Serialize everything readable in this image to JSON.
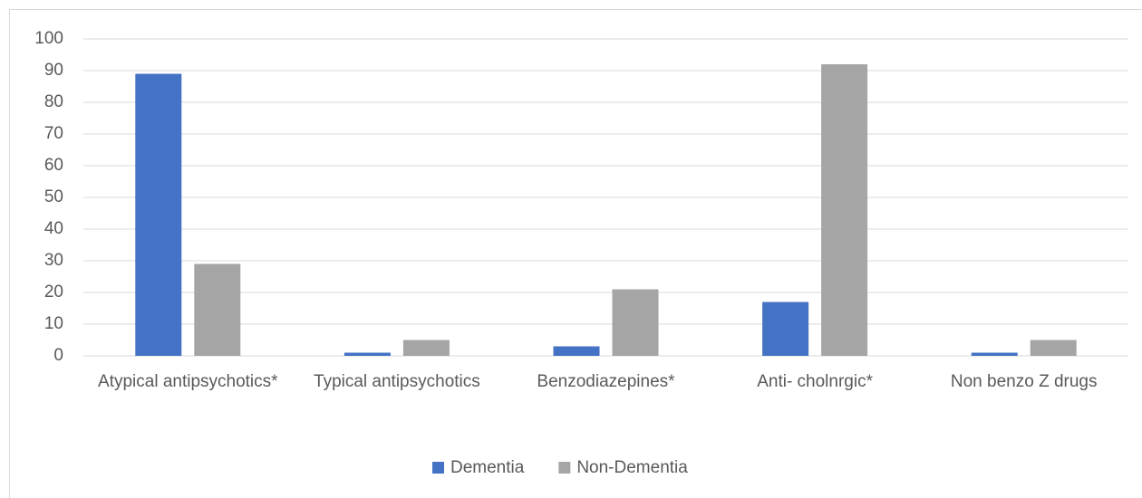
{
  "chart_data": {
    "type": "bar",
    "categories": [
      "Atypical antipsychotics*",
      "Typical antipsychotics",
      "Benzodiazepines*",
      "Anti- cholnrgic*",
      "Non benzo Z drugs"
    ],
    "series": [
      {
        "name": "Dementia",
        "color": "#4472c4",
        "values": [
          89,
          1,
          3,
          17,
          1
        ]
      },
      {
        "name": "Non-Dementia",
        "color": "#a5a5a5",
        "values": [
          29,
          5,
          21,
          92,
          5
        ]
      }
    ],
    "ylim": [
      0,
      100
    ],
    "yticks": [
      0,
      10,
      20,
      30,
      40,
      50,
      60,
      70,
      80,
      90,
      100
    ],
    "grid": true,
    "legend": "bottom"
  }
}
